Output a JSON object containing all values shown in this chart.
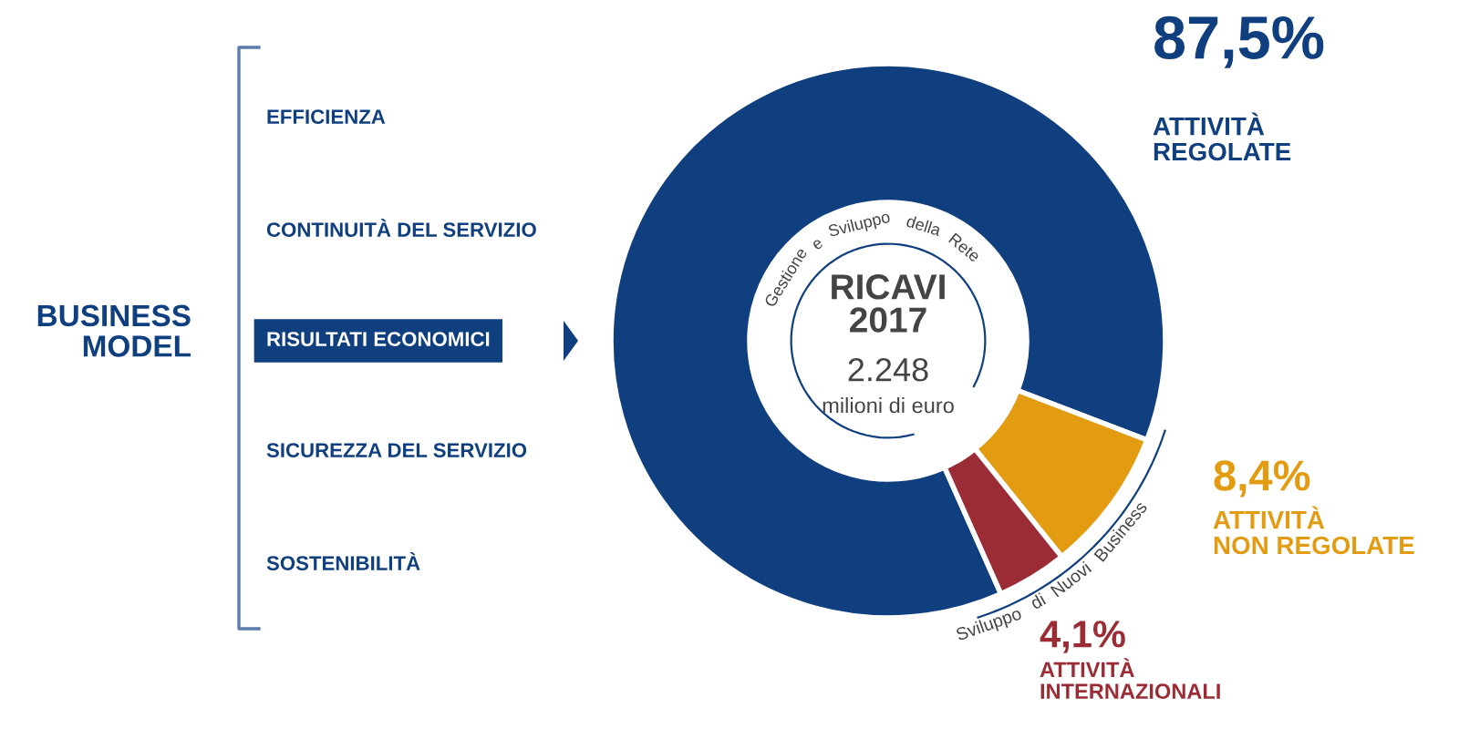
{
  "chart_data": {
    "type": "donut",
    "categories": [
      "ATTIVITÀ\nREGOLATE",
      "ATTIVITÀ\nNON REGOLATE",
      "ATTIVITÀ\nINTERNAZIONALI"
    ],
    "values": [
      87.5,
      8.4,
      4.1
    ],
    "value_labels": [
      "87,5%",
      "8,4%",
      "4,1%"
    ],
    "colors": [
      "#0f3f7f",
      "#e39b12",
      "#9b2c35"
    ],
    "title": "RICAVI\n2017",
    "subtitle": "2.248\nmilioni di euro",
    "annotations": [
      "BUSINESS\nMODEL",
      "EFFICIENZA",
      "CONTINUITÀ DEL SERVIZIO",
      "RISULTATI ECONOMICI",
      "SICUREZZA DEL SERVIZIO",
      "SOSTENIBILITÀ",
      "Gestione e Sviluppo della Rete",
      "Sviluppo di Nuovi Business"
    ],
    "legend": false
  }
}
